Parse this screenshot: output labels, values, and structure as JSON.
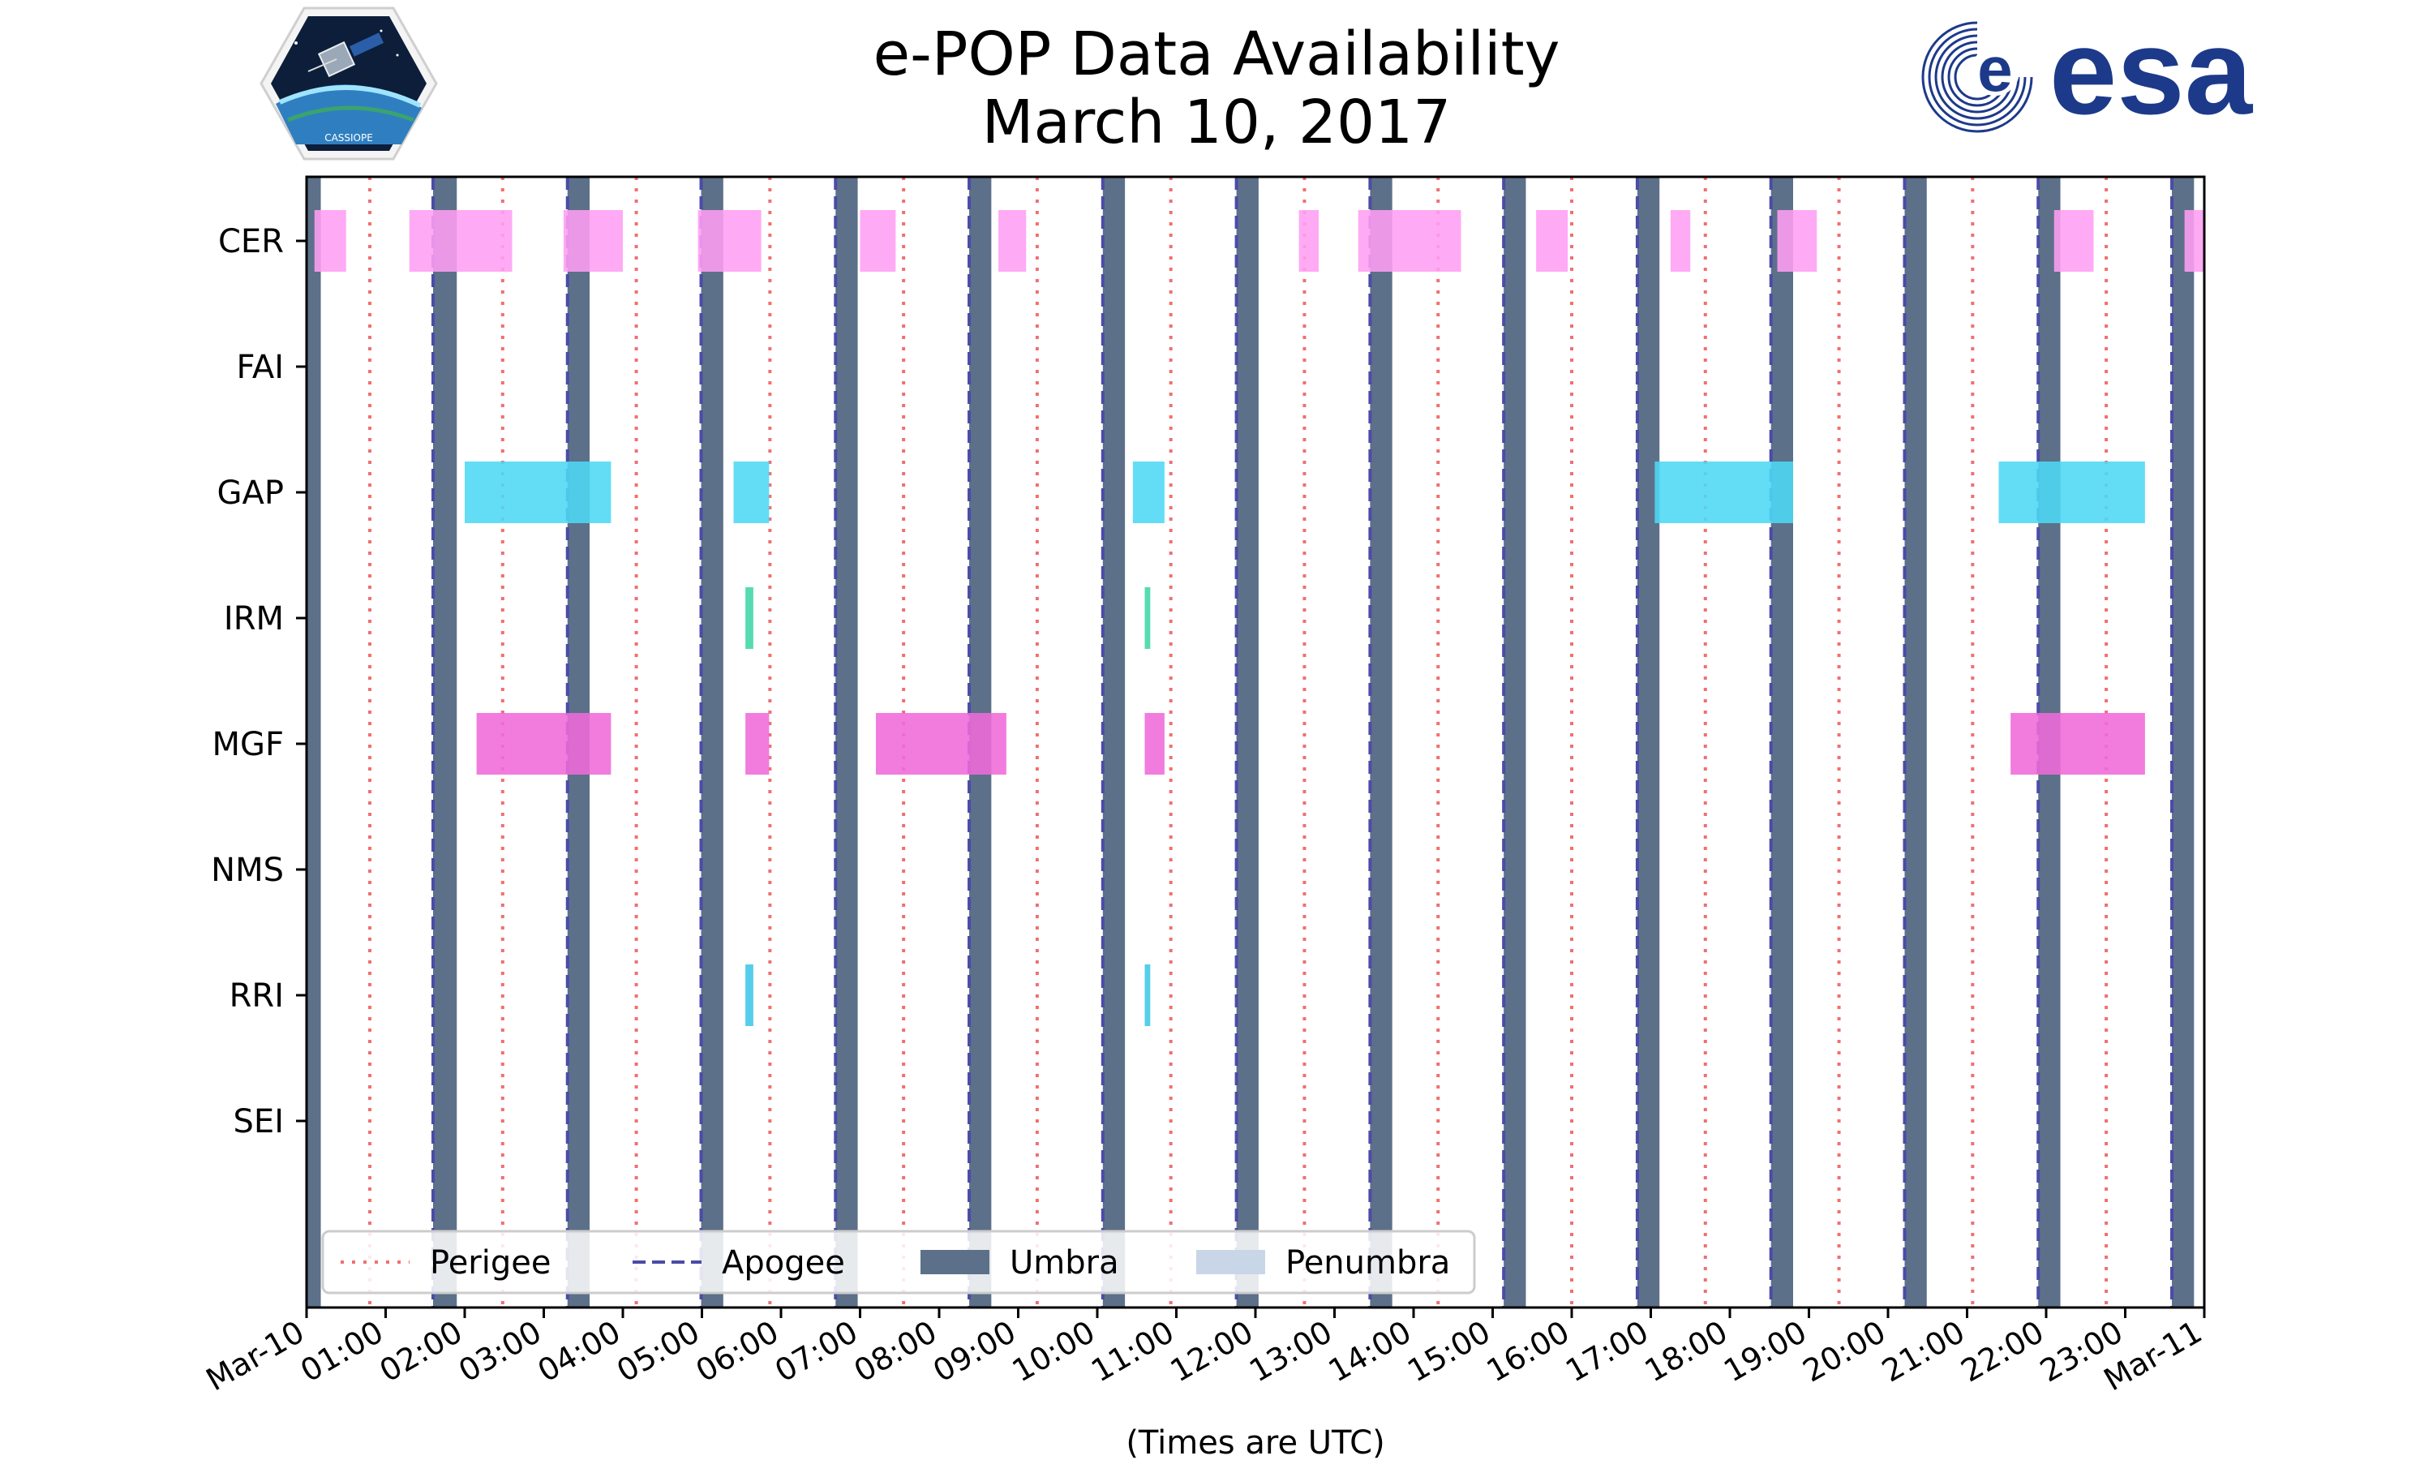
{
  "chart_data": {
    "type": "timeline",
    "title": "e-POP Data Availability",
    "subtitle": "March 10, 2017",
    "xlabel": "(Times are UTC)",
    "xlim_hours": [
      0,
      24
    ],
    "x_tick_labels": [
      "Mar-10",
      "01:00",
      "02:00",
      "03:00",
      "04:00",
      "05:00",
      "06:00",
      "07:00",
      "08:00",
      "09:00",
      "10:00",
      "11:00",
      "12:00",
      "13:00",
      "14:00",
      "15:00",
      "16:00",
      "17:00",
      "18:00",
      "19:00",
      "20:00",
      "21:00",
      "22:00",
      "23:00",
      "Mar-11"
    ],
    "instruments": [
      "CER",
      "FAI",
      "GAP",
      "IRM",
      "MGF",
      "NMS",
      "RRI",
      "SEI"
    ],
    "colors": {
      "CER": "#ff9ef2",
      "GAP": "#4dd8f5",
      "IRM": "#3fd6a6",
      "MGF": "#f06ad8",
      "RRI": "#3cc7e8",
      "umbra": "#5d7089",
      "penumbra": "#c8d6e8",
      "perigee": "#f07070",
      "apogee": "#4b4ba8"
    },
    "availability": {
      "CER": [
        [
          0.1,
          0.5
        ],
        [
          1.3,
          2.6
        ],
        [
          3.25,
          4.0
        ],
        [
          4.95,
          5.75
        ],
        [
          7.0,
          7.45
        ],
        [
          8.75,
          9.1
        ],
        [
          12.55,
          12.8
        ],
        [
          13.3,
          14.6
        ],
        [
          15.55,
          15.95
        ],
        [
          17.25,
          17.5
        ],
        [
          18.6,
          19.1
        ],
        [
          22.1,
          22.6
        ],
        [
          23.75,
          24.0
        ]
      ],
      "FAI": [],
      "GAP": [
        [
          2.0,
          3.85
        ],
        [
          5.4,
          5.85
        ],
        [
          10.45,
          10.85
        ],
        [
          17.05,
          18.8
        ],
        [
          21.4,
          23.25
        ]
      ],
      "IRM": [
        [
          5.55,
          5.65
        ],
        [
          10.6,
          10.67
        ]
      ],
      "MGF": [
        [
          2.15,
          3.85
        ],
        [
          5.55,
          5.85
        ],
        [
          7.2,
          8.85
        ],
        [
          10.6,
          10.85
        ],
        [
          21.55,
          23.25
        ]
      ],
      "NMS": [],
      "RRI": [
        [
          5.55,
          5.65
        ],
        [
          10.6,
          10.67
        ]
      ],
      "SEI": []
    },
    "umbra": [
      [
        0.0,
        0.18
      ],
      [
        1.6,
        1.9
      ],
      [
        3.3,
        3.58
      ],
      [
        4.99,
        5.27
      ],
      [
        6.69,
        6.97
      ],
      [
        8.38,
        8.66
      ],
      [
        10.07,
        10.35
      ],
      [
        11.76,
        12.04
      ],
      [
        13.45,
        13.73
      ],
      [
        15.14,
        15.42
      ],
      [
        16.83,
        17.11
      ],
      [
        18.52,
        18.8
      ],
      [
        20.21,
        20.49
      ],
      [
        21.9,
        22.18
      ],
      [
        23.59,
        23.87
      ]
    ],
    "apogee": [
      1.6,
      3.3,
      4.99,
      6.69,
      8.38,
      10.07,
      11.76,
      13.45,
      15.14,
      16.83,
      18.52,
      20.21,
      21.9,
      23.59
    ],
    "perigee": [
      0.8,
      2.48,
      4.17,
      5.86,
      7.55,
      9.24,
      10.93,
      12.62,
      14.31,
      16.0,
      17.69,
      19.38,
      21.07,
      22.76
    ],
    "legend": {
      "position": "lower-left",
      "entries": [
        "Perigee",
        "Apogee",
        "Umbra",
        "Penumbra"
      ]
    }
  },
  "logos": {
    "left": "CASSIOPE",
    "right": "esa"
  }
}
